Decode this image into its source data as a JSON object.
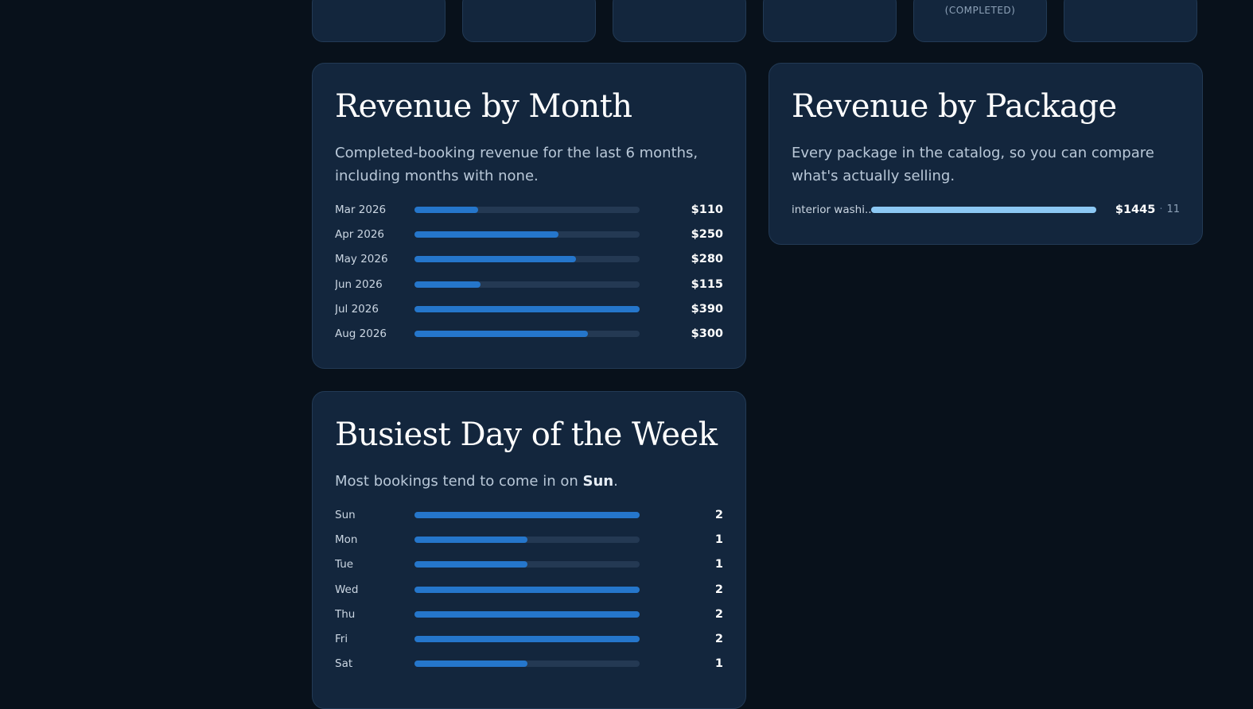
{
  "stat_cards": [
    {
      "label": ""
    },
    {
      "label": ""
    },
    {
      "label": ""
    },
    {
      "label": ""
    },
    {
      "label": "(COMPLETED)"
    },
    {
      "label": ""
    }
  ],
  "revenue_month": {
    "title": "Revenue by Month",
    "description": "Completed-booking revenue for the last 6 months, including months with none.",
    "rows": [
      {
        "label": "Mar 2026",
        "value": "$110",
        "amount": 110
      },
      {
        "label": "Apr 2026",
        "value": "$250",
        "amount": 250
      },
      {
        "label": "May 2026",
        "value": "$280",
        "amount": 280
      },
      {
        "label": "Jun 2026",
        "value": "$115",
        "amount": 115
      },
      {
        "label": "Jul 2026",
        "value": "$390",
        "amount": 390
      },
      {
        "label": "Aug 2026",
        "value": "$300",
        "amount": 300
      }
    ],
    "max": 390
  },
  "revenue_package": {
    "title": "Revenue by Package",
    "description": "Every package in the catalog, so you can compare what's actually selling.",
    "rows": [
      {
        "label": "interior washi...",
        "value": "$1445",
        "separator": "·",
        "count": "11",
        "fraction": 1.0
      }
    ]
  },
  "busiest_day": {
    "title": "Busiest Day of the Week",
    "description_prefix": "Most bookings tend to come in on ",
    "description_day": "Sun",
    "description_suffix": ".",
    "rows": [
      {
        "label": "Sun",
        "value": "2",
        "count": 2
      },
      {
        "label": "Mon",
        "value": "1",
        "count": 1
      },
      {
        "label": "Tue",
        "value": "1",
        "count": 1
      },
      {
        "label": "Wed",
        "value": "2",
        "count": 2
      },
      {
        "label": "Thu",
        "value": "2",
        "count": 2
      },
      {
        "label": "Fri",
        "value": "2",
        "count": 2
      },
      {
        "label": "Sat",
        "value": "1",
        "count": 1
      }
    ],
    "max": 2
  },
  "colors": {
    "bar_fill": "#2576cb",
    "bar_fill_light": "#8cc8f4",
    "track": "#243953",
    "card_bg": "#13263d",
    "page_bg": "#08111b"
  }
}
